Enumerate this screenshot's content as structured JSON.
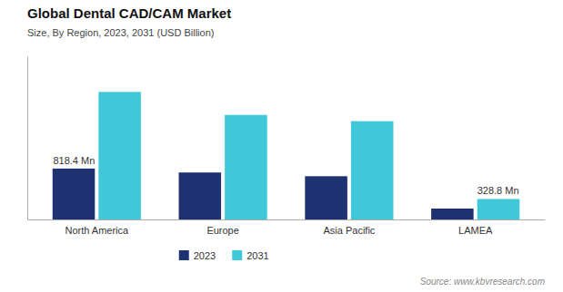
{
  "chart_data": {
    "type": "bar",
    "title": "Global Dental CAD/CAM Market",
    "subtitle": "Size, By Region, 2023, 2031 (USD Billion)",
    "categories": [
      "North America",
      "Europe",
      "Asia Pacific",
      "LAMEA"
    ],
    "series": [
      {
        "name": "2023",
        "color": "#1e3272",
        "values": [
          818.4,
          755,
          695,
          175
        ]
      },
      {
        "name": "2031",
        "color": "#3ec8d8",
        "values": [
          2050,
          1680,
          1580,
          328.8
        ]
      }
    ],
    "ylim": [
      0,
      2624
    ],
    "yticks": [],
    "tick_labels": "x",
    "grid": false,
    "legend": "bottom",
    "annotations": [
      {
        "text": "818.4 Mn",
        "category": "North America",
        "series": "2023"
      },
      {
        "text": "328.8 Mn",
        "category": "LAMEA",
        "series": "2031"
      }
    ],
    "source": "Source: www.kbvresearch.com"
  }
}
